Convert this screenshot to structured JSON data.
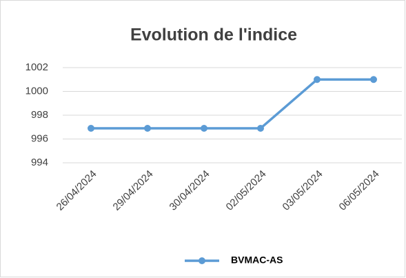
{
  "chart_data": {
    "type": "line",
    "title": "Evolution de l'indice",
    "categories": [
      "26/04/2024",
      "29/04/2024",
      "30/04/2024",
      "02/05/2024",
      "03/05/2024",
      "06/05/2024"
    ],
    "series": [
      {
        "name": "BVMAC-AS",
        "color": "#5b9bd5",
        "values": [
          996.9,
          996.9,
          996.9,
          996.9,
          1001,
          1001
        ]
      }
    ],
    "ylim": [
      994,
      1002
    ],
    "yticks": [
      994,
      996,
      998,
      1000,
      1002
    ],
    "grid": true,
    "legend": "bottom"
  }
}
